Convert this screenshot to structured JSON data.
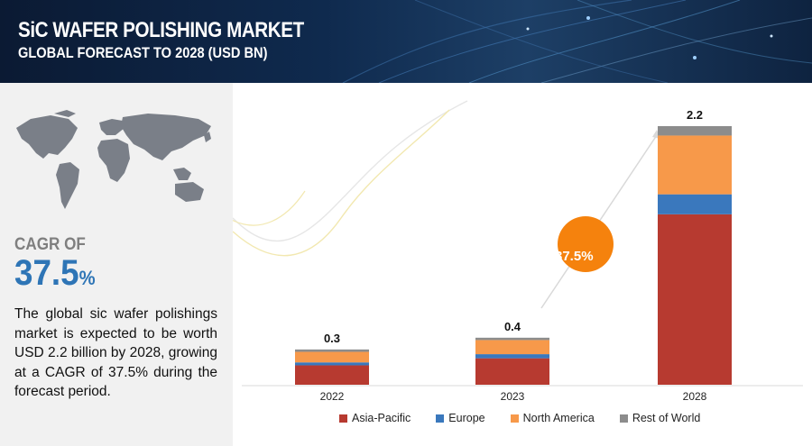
{
  "header": {
    "title": "SiC WAFER POLISHING MARKET",
    "subtitle": "GLOBAL FORECAST TO 2028 (USD BN)"
  },
  "left_panel": {
    "map_icon": "world-map-icon",
    "cagr_label": "CAGR OF",
    "cagr_value": "37.5",
    "cagr_unit": "%",
    "description": "The global sic wafer polishings market is expected to be worth USD 2.2 billion by 2028, growing at a CAGR of 37.5% during the forecast period."
  },
  "chart_overlay": {
    "cagr_badge": "37.5%"
  },
  "chart_data": {
    "type": "bar",
    "stacked": true,
    "categories": [
      "2022",
      "2023",
      "2028"
    ],
    "totals": [
      "0.3",
      "0.4",
      "2.2"
    ],
    "series": [
      {
        "name": "Asia-Pacific",
        "color": "#b73a30",
        "values": [
          0.165,
          0.225,
          1.45
        ]
      },
      {
        "name": "Europe",
        "color": "#3a78bd",
        "values": [
          0.025,
          0.035,
          0.17
        ]
      },
      {
        "name": "North America",
        "color": "#f7994a",
        "values": [
          0.09,
          0.12,
          0.5
        ]
      },
      {
        "name": "Rest of World",
        "color": "#8c8c8c",
        "values": [
          0.02,
          0.02,
          0.08
        ]
      }
    ],
    "ylim": [
      0,
      2.2
    ],
    "grid": false,
    "legend_position": "bottom"
  }
}
